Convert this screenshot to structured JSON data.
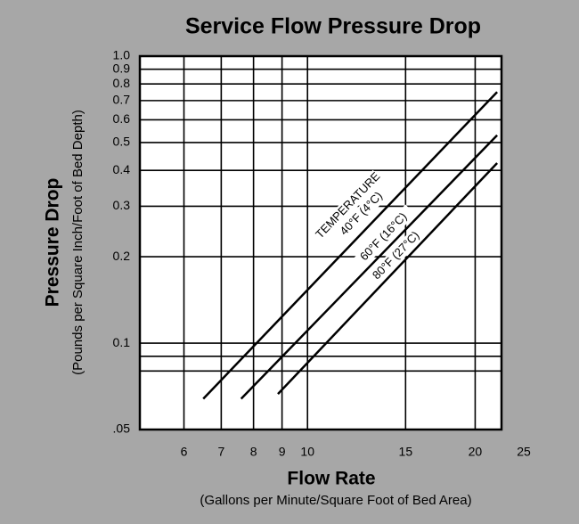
{
  "chart_data": {
    "type": "line",
    "title": "Service Flow Pressure Drop",
    "x_label": "Flow Rate",
    "x_sublabel": "(Gallons per Minute/Square Foot of Bed Area)",
    "y_label": "Pressure Drop",
    "y_sublabel": "(Pounds per Square Inch/Foot of Bed Depth)",
    "annotation": "TEMPERATURE",
    "x_scale": "log",
    "y_scale": "log",
    "grid": true,
    "xlim": [
      5,
      22.3
    ],
    "ylim": [
      0.05,
      1
    ],
    "xticks": [
      6,
      7,
      8,
      9,
      10,
      15,
      20,
      25
    ],
    "yticks": [
      {
        "value": 0.05,
        "label": ".05"
      },
      0.1,
      0.2,
      0.3,
      0.4,
      0.5,
      0.6,
      0.7,
      0.8,
      0.9,
      {
        "value": 1,
        "label": "1.0"
      }
    ],
    "minor_yticks": [
      0.08,
      0.09
    ],
    "series": [
      {
        "name": "40°F (4°C)",
        "color": "#000000",
        "x": [
          6.5,
          21.9
        ],
        "values": [
          0.064,
          0.75
        ]
      },
      {
        "name": "60°F (16°C)",
        "color": "#000000",
        "x": [
          7.6,
          21.9
        ],
        "values": [
          0.064,
          0.53
        ]
      },
      {
        "name": "80°F (27°C)",
        "color": "#000000",
        "x": [
          8.85,
          21.9
        ],
        "values": [
          0.0665,
          0.424
        ]
      }
    ]
  }
}
